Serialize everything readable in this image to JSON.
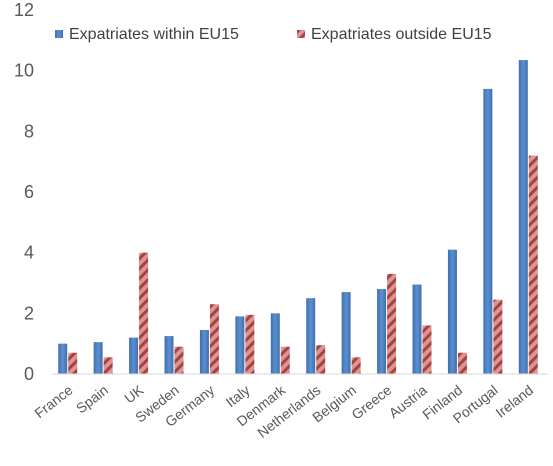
{
  "chart_data": {
    "type": "bar",
    "title": "",
    "xlabel": "",
    "ylabel": "",
    "ylim": [
      0,
      12
    ],
    "yticks": [
      0,
      2,
      4,
      6,
      8,
      10,
      12
    ],
    "grid": false,
    "legend_position": "top",
    "categories": [
      "France",
      "Spain",
      "UK",
      "Sweden",
      "Germany",
      "Italy",
      "Denmark",
      "Netherlands",
      "Belgium",
      "Greece",
      "Austria",
      "Finland",
      "Portugal",
      "Ireland"
    ],
    "series": [
      {
        "name": "Expatriates within EU15",
        "color": "#4a7ebb",
        "pattern": "solid",
        "values": [
          1.0,
          1.05,
          1.2,
          1.25,
          1.45,
          1.9,
          2.0,
          2.5,
          2.7,
          2.8,
          2.95,
          4.1,
          9.4,
          10.35
        ]
      },
      {
        "name": "Expatriates outside EU15",
        "color": "#c0504d",
        "pattern": "hatched",
        "values": [
          0.7,
          0.55,
          4.0,
          0.9,
          2.3,
          1.95,
          0.9,
          0.95,
          0.55,
          3.3,
          1.6,
          0.7,
          2.45,
          7.2
        ]
      }
    ]
  }
}
